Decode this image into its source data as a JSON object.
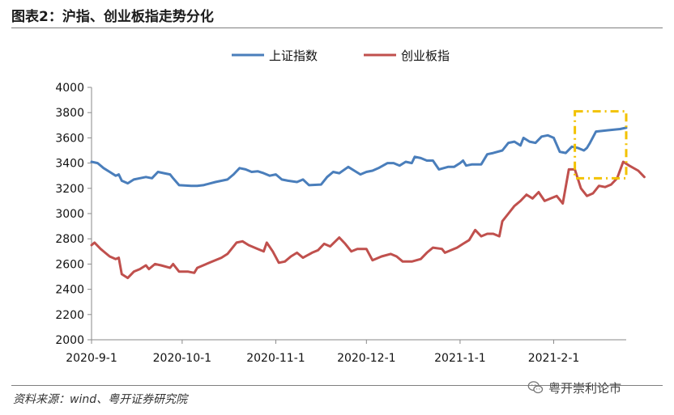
{
  "header": {
    "title": "图表2：沪指、创业板指走势分化"
  },
  "footer": {
    "source": "资料来源：wind、粤开证券研究院",
    "watermark": "粤开崇利论市"
  },
  "chart_data": {
    "type": "line",
    "title": "",
    "xlabel": "",
    "ylabel": "",
    "ylim": [
      2000,
      4000
    ],
    "yticks": [
      2000,
      2200,
      2400,
      2600,
      2800,
      3000,
      3200,
      3400,
      3600,
      3800,
      4000
    ],
    "xlim": [
      "2020-09-01",
      "2021-02-25"
    ],
    "xticks": [
      {
        "date": "2020-09-01",
        "label": "2020-9-1"
      },
      {
        "date": "2020-10-01",
        "label": "2020-10-1"
      },
      {
        "date": "2020-11-01",
        "label": "2020-11-1"
      },
      {
        "date": "2020-12-01",
        "label": "2020-12-1"
      },
      {
        "date": "2021-01-01",
        "label": "2021-1-1"
      },
      {
        "date": "2021-02-01",
        "label": "2021-2-1"
      }
    ],
    "grid": false,
    "legend": "top-center",
    "highlight_box": {
      "x": [
        "2021-02-08",
        "2021-02-25"
      ],
      "y": [
        3280,
        3810
      ],
      "color": "#f2c200"
    },
    "series": [
      {
        "name": "上证指数",
        "color": "#4a7ebb",
        "points": [
          [
            "2020-09-01",
            3410
          ],
          [
            "2020-09-03",
            3400
          ],
          [
            "2020-09-05",
            3360
          ],
          [
            "2020-09-07",
            3330
          ],
          [
            "2020-09-09",
            3300
          ],
          [
            "2020-09-10",
            3310
          ],
          [
            "2020-09-11",
            3260
          ],
          [
            "2020-09-13",
            3240
          ],
          [
            "2020-09-15",
            3270
          ],
          [
            "2020-09-17",
            3280
          ],
          [
            "2020-09-19",
            3290
          ],
          [
            "2020-09-21",
            3280
          ],
          [
            "2020-09-23",
            3330
          ],
          [
            "2020-09-25",
            3320
          ],
          [
            "2020-09-27",
            3310
          ],
          [
            "2020-09-28",
            3280
          ],
          [
            "2020-09-30",
            3225
          ],
          [
            "2020-10-04",
            3220
          ],
          [
            "2020-10-06",
            3220
          ],
          [
            "2020-10-08",
            3225
          ],
          [
            "2020-10-12",
            3250
          ],
          [
            "2020-10-16",
            3270
          ],
          [
            "2020-10-18",
            3310
          ],
          [
            "2020-10-20",
            3360
          ],
          [
            "2020-10-22",
            3350
          ],
          [
            "2020-10-24",
            3330
          ],
          [
            "2020-10-26",
            3335
          ],
          [
            "2020-10-28",
            3320
          ],
          [
            "2020-10-30",
            3300
          ],
          [
            "2020-11-01",
            3310
          ],
          [
            "2020-11-03",
            3270
          ],
          [
            "2020-11-05",
            3260
          ],
          [
            "2020-11-08",
            3250
          ],
          [
            "2020-11-10",
            3270
          ],
          [
            "2020-11-12",
            3225
          ],
          [
            "2020-11-16",
            3230
          ],
          [
            "2020-11-18",
            3290
          ],
          [
            "2020-11-20",
            3330
          ],
          [
            "2020-11-22",
            3320
          ],
          [
            "2020-11-25",
            3370
          ],
          [
            "2020-11-27",
            3340
          ],
          [
            "2020-11-29",
            3310
          ],
          [
            "2020-12-01",
            3330
          ],
          [
            "2020-12-03",
            3340
          ],
          [
            "2020-12-05",
            3360
          ],
          [
            "2020-12-08",
            3400
          ],
          [
            "2020-12-10",
            3400
          ],
          [
            "2020-12-12",
            3380
          ],
          [
            "2020-12-14",
            3410
          ],
          [
            "2020-12-16",
            3400
          ],
          [
            "2020-12-17",
            3450
          ],
          [
            "2020-12-19",
            3440
          ],
          [
            "2020-12-21",
            3420
          ],
          [
            "2020-12-23",
            3420
          ],
          [
            "2020-12-25",
            3350
          ],
          [
            "2020-12-28",
            3370
          ],
          [
            "2020-12-30",
            3370
          ],
          [
            "2021-01-01",
            3400
          ],
          [
            "2021-01-02",
            3420
          ],
          [
            "2021-01-03",
            3380
          ],
          [
            "2021-01-05",
            3390
          ],
          [
            "2021-01-08",
            3390
          ],
          [
            "2021-01-10",
            3470
          ],
          [
            "2021-01-12",
            3480
          ],
          [
            "2021-01-15",
            3500
          ],
          [
            "2021-01-17",
            3560
          ],
          [
            "2021-01-19",
            3570
          ],
          [
            "2021-01-21",
            3540
          ],
          [
            "2021-01-22",
            3600
          ],
          [
            "2021-01-24",
            3570
          ],
          [
            "2021-01-26",
            3560
          ],
          [
            "2021-01-28",
            3610
          ],
          [
            "2021-01-30",
            3620
          ],
          [
            "2021-02-01",
            3600
          ],
          [
            "2021-02-03",
            3490
          ],
          [
            "2021-02-05",
            3480
          ],
          [
            "2021-02-07",
            3530
          ],
          [
            "2021-02-09",
            3520
          ],
          [
            "2021-02-11",
            3500
          ],
          [
            "2021-02-12",
            3520
          ],
          [
            "2021-02-13",
            3560
          ],
          [
            "2021-02-15",
            3650
          ],
          [
            "2021-02-19",
            3660
          ],
          [
            "2021-02-23",
            3670
          ],
          [
            "2021-02-25",
            3680
          ]
        ]
      },
      {
        "name": "创业板指",
        "color": "#c0504d",
        "points": [
          [
            "2020-09-01",
            2750
          ],
          [
            "2020-09-02",
            2770
          ],
          [
            "2020-09-04",
            2720
          ],
          [
            "2020-09-07",
            2660
          ],
          [
            "2020-09-09",
            2640
          ],
          [
            "2020-09-10",
            2650
          ],
          [
            "2020-09-11",
            2520
          ],
          [
            "2020-09-13",
            2490
          ],
          [
            "2020-09-15",
            2540
          ],
          [
            "2020-09-17",
            2560
          ],
          [
            "2020-09-19",
            2590
          ],
          [
            "2020-09-20",
            2560
          ],
          [
            "2020-09-22",
            2600
          ],
          [
            "2020-09-24",
            2590
          ],
          [
            "2020-09-27",
            2570
          ],
          [
            "2020-09-28",
            2600
          ],
          [
            "2020-09-30",
            2540
          ],
          [
            "2020-10-03",
            2540
          ],
          [
            "2020-10-05",
            2530
          ],
          [
            "2020-10-06",
            2570
          ],
          [
            "2020-10-10",
            2610
          ],
          [
            "2020-10-14",
            2650
          ],
          [
            "2020-10-16",
            2680
          ],
          [
            "2020-10-19",
            2770
          ],
          [
            "2020-10-21",
            2780
          ],
          [
            "2020-10-23",
            2750
          ],
          [
            "2020-10-26",
            2720
          ],
          [
            "2020-10-28",
            2700
          ],
          [
            "2020-10-29",
            2770
          ],
          [
            "2020-10-31",
            2700
          ],
          [
            "2020-11-02",
            2610
          ],
          [
            "2020-11-04",
            2620
          ],
          [
            "2020-11-06",
            2660
          ],
          [
            "2020-11-08",
            2690
          ],
          [
            "2020-11-10",
            2650
          ],
          [
            "2020-11-13",
            2690
          ],
          [
            "2020-11-15",
            2710
          ],
          [
            "2020-11-17",
            2760
          ],
          [
            "2020-11-19",
            2740
          ],
          [
            "2020-11-22",
            2810
          ],
          [
            "2020-11-24",
            2760
          ],
          [
            "2020-11-26",
            2700
          ],
          [
            "2020-11-28",
            2720
          ],
          [
            "2020-12-01",
            2720
          ],
          [
            "2020-12-03",
            2630
          ],
          [
            "2020-12-06",
            2660
          ],
          [
            "2020-12-09",
            2680
          ],
          [
            "2020-12-11",
            2660
          ],
          [
            "2020-12-13",
            2620
          ],
          [
            "2020-12-16",
            2620
          ],
          [
            "2020-12-19",
            2640
          ],
          [
            "2020-12-21",
            2690
          ],
          [
            "2020-12-23",
            2730
          ],
          [
            "2020-12-26",
            2720
          ],
          [
            "2020-12-27",
            2690
          ],
          [
            "2020-12-29",
            2710
          ],
          [
            "2020-12-31",
            2730
          ],
          [
            "2021-01-02",
            2760
          ],
          [
            "2021-01-04",
            2790
          ],
          [
            "2021-01-06",
            2870
          ],
          [
            "2021-01-08",
            2820
          ],
          [
            "2021-01-10",
            2840
          ],
          [
            "2021-01-12",
            2840
          ],
          [
            "2021-01-14",
            2820
          ],
          [
            "2021-01-15",
            2940
          ],
          [
            "2021-01-17",
            3000
          ],
          [
            "2021-01-19",
            3060
          ],
          [
            "2021-01-21",
            3100
          ],
          [
            "2021-01-23",
            3150
          ],
          [
            "2021-01-25",
            3120
          ],
          [
            "2021-01-27",
            3170
          ],
          [
            "2021-01-29",
            3100
          ],
          [
            "2021-01-31",
            3120
          ],
          [
            "2021-02-02",
            3140
          ],
          [
            "2021-02-04",
            3080
          ],
          [
            "2021-02-06",
            3350
          ],
          [
            "2021-02-08",
            3350
          ],
          [
            "2021-02-10",
            3200
          ],
          [
            "2021-02-12",
            3140
          ],
          [
            "2021-02-14",
            3160
          ],
          [
            "2021-02-16",
            3220
          ],
          [
            "2021-02-18",
            3210
          ],
          [
            "2021-02-20",
            3230
          ],
          [
            "2021-02-22",
            3280
          ],
          [
            "2021-02-24",
            3410
          ],
          [
            "2021-02-26",
            3380
          ],
          [
            "2021-03-01",
            3340
          ],
          [
            "2021-03-03",
            3290
          ]
        ]
      }
    ]
  }
}
